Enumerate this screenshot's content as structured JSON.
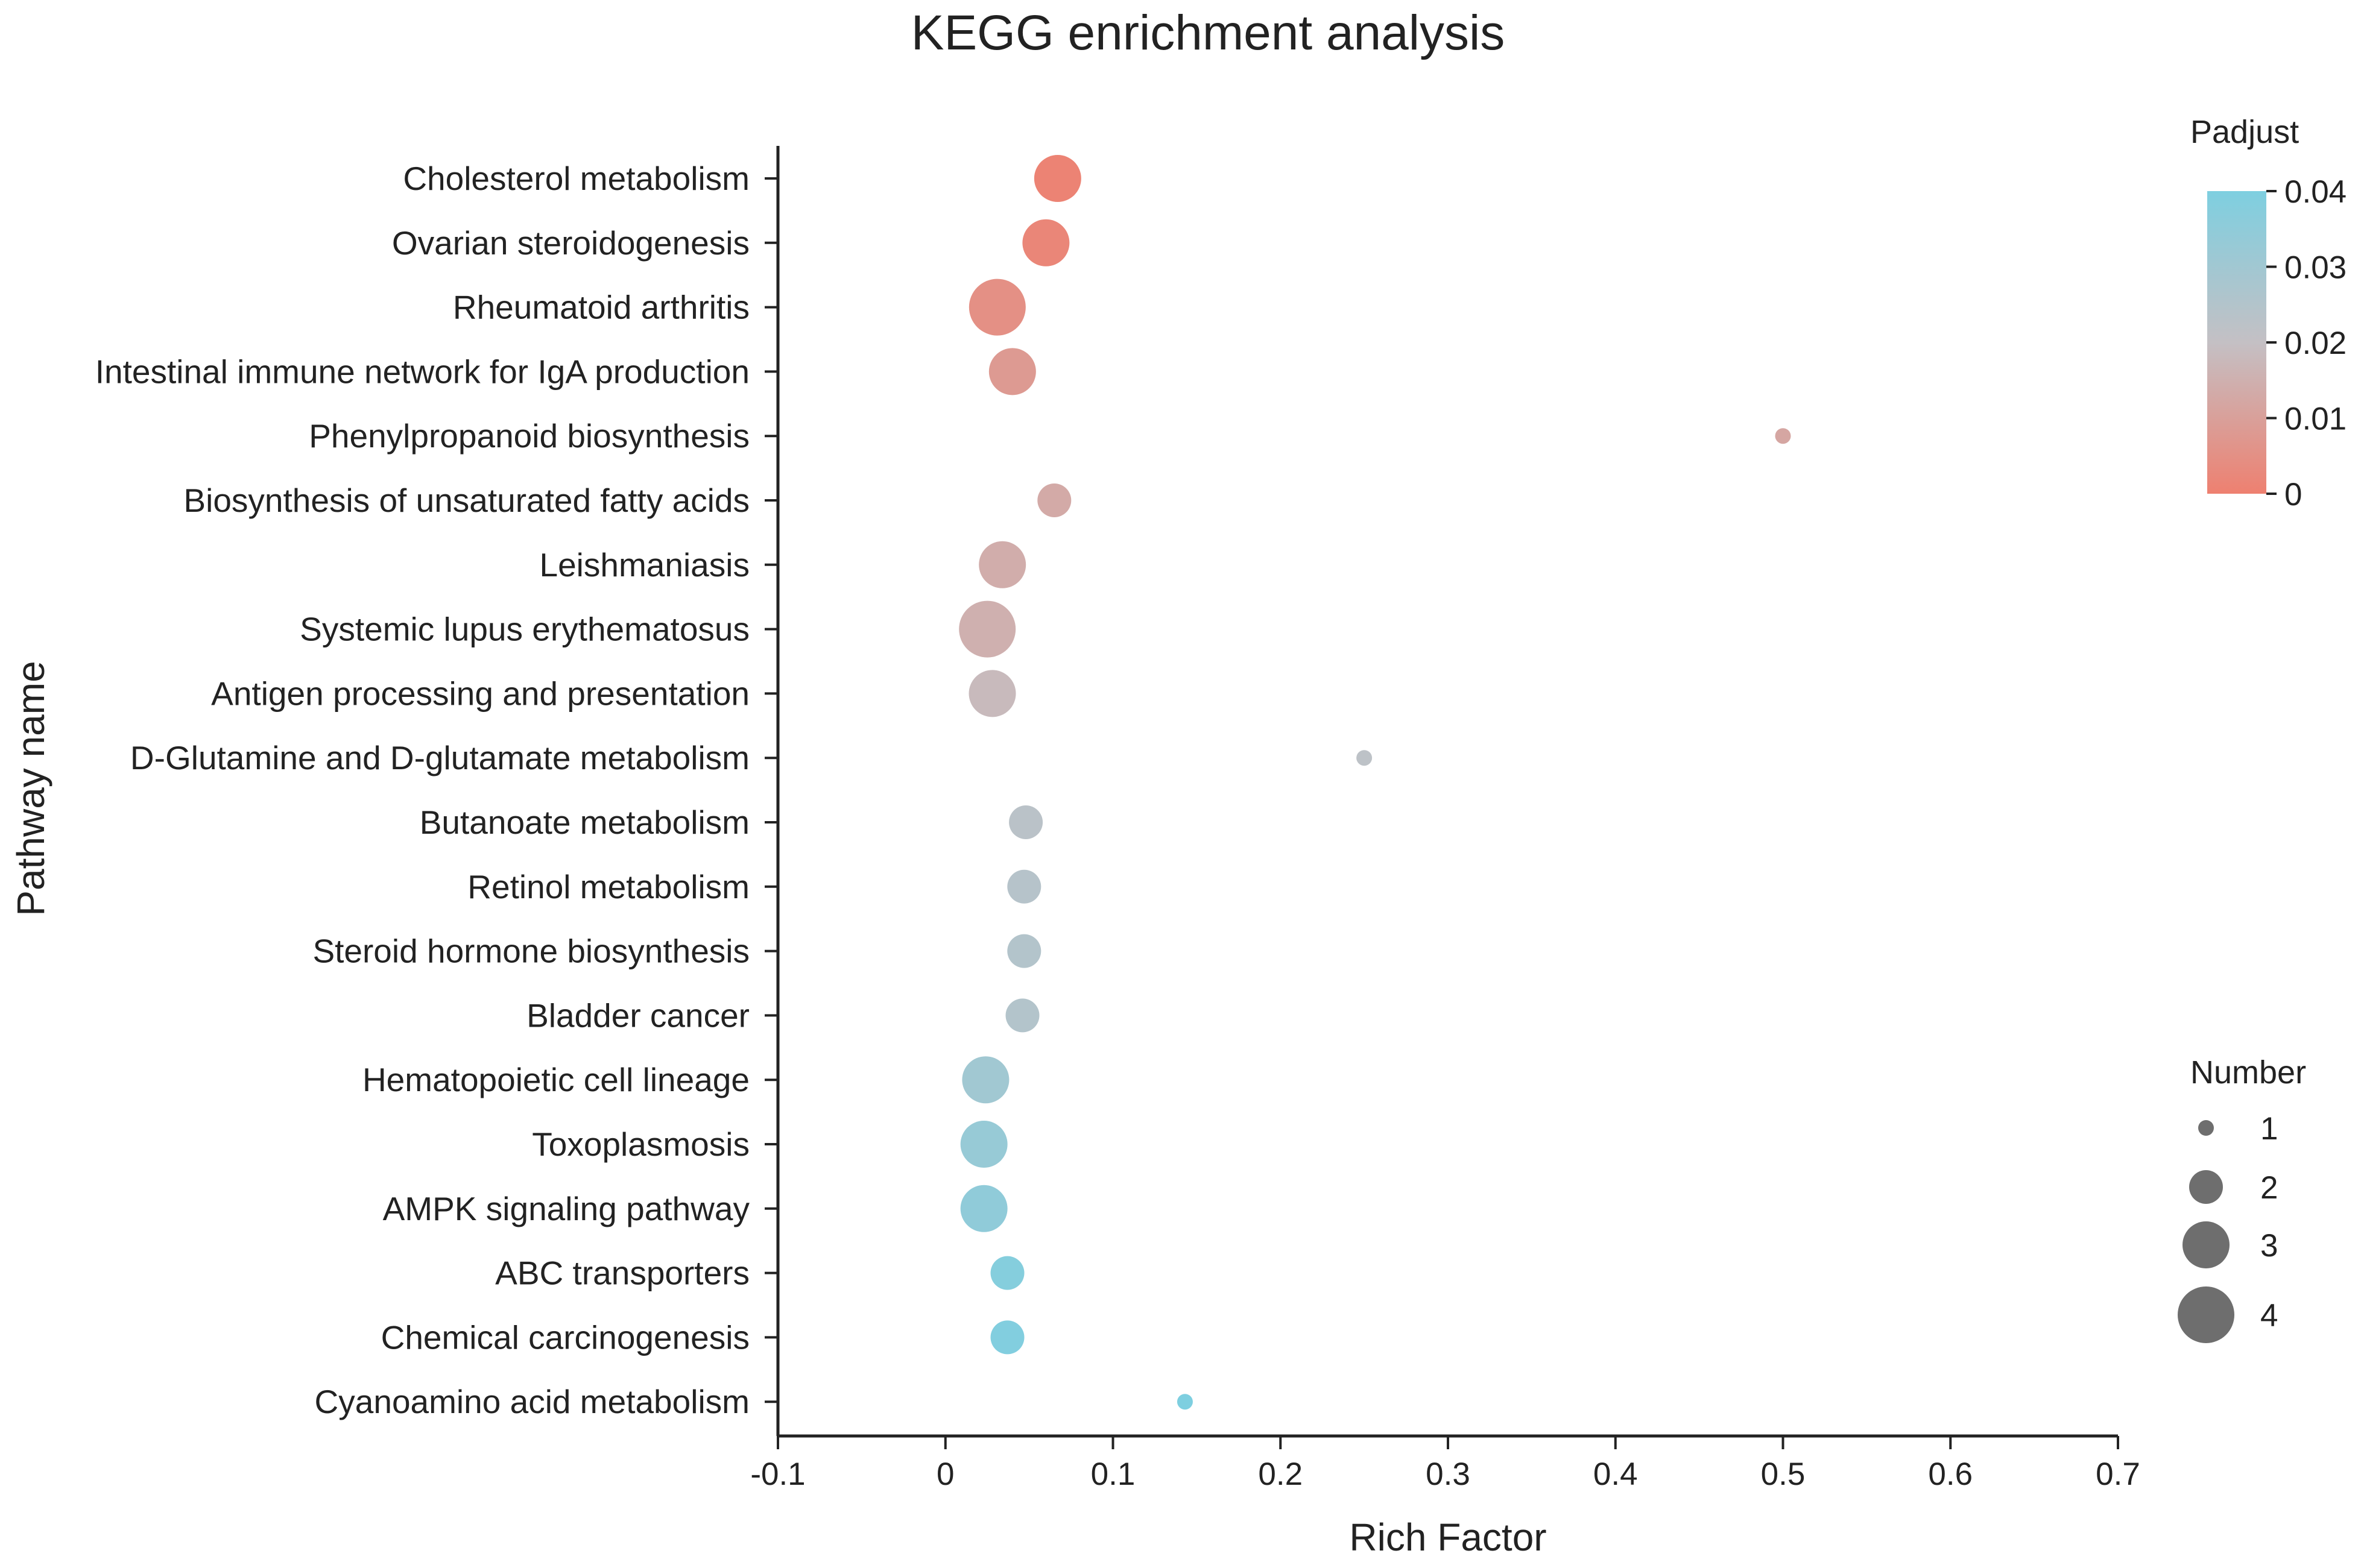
{
  "chart_data": {
    "type": "scatter",
    "title": "KEGG enrichment analysis",
    "xlabel": "Rich Factor",
    "ylabel": "Pathway name",
    "xlim": [
      -0.1,
      0.7
    ],
    "xticks": [
      -0.1,
      0,
      0.1,
      0.2,
      0.3,
      0.4,
      0.5,
      0.6,
      0.7
    ],
    "xtick_labels": [
      "-0.1",
      "0",
      "0.1",
      "0.2",
      "0.3",
      "0.4",
      "0.5",
      "0.6",
      "0.7"
    ],
    "grid": false,
    "points": [
      {
        "pathway": "Cholesterol metabolism",
        "rich_factor": 0.067,
        "number": 3,
        "padjust": 0.001
      },
      {
        "pathway": "Ovarian steroidogenesis",
        "rich_factor": 0.06,
        "number": 3,
        "padjust": 0.002
      },
      {
        "pathway": "Rheumatoid arthritis",
        "rich_factor": 0.031,
        "number": 4,
        "padjust": 0.005
      },
      {
        "pathway": "Intestinal immune network for IgA production",
        "rich_factor": 0.04,
        "number": 3,
        "padjust": 0.008
      },
      {
        "pathway": "Phenylpropanoid biosynthesis",
        "rich_factor": 0.5,
        "number": 1,
        "padjust": 0.012
      },
      {
        "pathway": "Biosynthesis of unsaturated fatty acids",
        "rich_factor": 0.065,
        "number": 2,
        "padjust": 0.013
      },
      {
        "pathway": "Leishmaniasis",
        "rich_factor": 0.034,
        "number": 3,
        "padjust": 0.014
      },
      {
        "pathway": "Systemic lupus erythematosus",
        "rich_factor": 0.025,
        "number": 4,
        "padjust": 0.015
      },
      {
        "pathway": "Antigen processing and presentation",
        "rich_factor": 0.028,
        "number": 3,
        "padjust": 0.018
      },
      {
        "pathway": "D-Glutamine and D-glutamate metabolism",
        "rich_factor": 0.25,
        "number": 1,
        "padjust": 0.022
      },
      {
        "pathway": "Butanoate metabolism",
        "rich_factor": 0.048,
        "number": 2,
        "padjust": 0.023
      },
      {
        "pathway": "Retinol metabolism",
        "rich_factor": 0.047,
        "number": 2,
        "padjust": 0.024
      },
      {
        "pathway": "Steroid hormone biosynthesis",
        "rich_factor": 0.047,
        "number": 2,
        "padjust": 0.025
      },
      {
        "pathway": "Bladder cancer",
        "rich_factor": 0.046,
        "number": 2,
        "padjust": 0.025
      },
      {
        "pathway": "Hematopoietic cell lineage",
        "rich_factor": 0.024,
        "number": 3,
        "padjust": 0.03
      },
      {
        "pathway": "Toxoplasmosis",
        "rich_factor": 0.023,
        "number": 3,
        "padjust": 0.033
      },
      {
        "pathway": "AMPK signaling pathway",
        "rich_factor": 0.023,
        "number": 3,
        "padjust": 0.035
      },
      {
        "pathway": "ABC transporters",
        "rich_factor": 0.037,
        "number": 2,
        "padjust": 0.038
      },
      {
        "pathway": "Chemical carcinogenesis",
        "rich_factor": 0.037,
        "number": 2,
        "padjust": 0.039
      },
      {
        "pathway": "Cyanoamino acid metabolism",
        "rich_factor": 0.143,
        "number": 1,
        "padjust": 0.04
      }
    ],
    "color_legend": {
      "title": "Padjust",
      "min": 0,
      "max": 0.04,
      "ticks": [
        0,
        0.01,
        0.02,
        0.03,
        0.04
      ],
      "tick_labels": [
        "0",
        "0.01",
        "0.02",
        "0.03",
        "0.04"
      ],
      "colors": {
        "low": "#ee8070",
        "mid": "#c4c0c4",
        "high": "#7ecfe0"
      },
      "placement": "top-right"
    },
    "size_legend": {
      "title": "Number",
      "values": [
        1,
        2,
        3,
        4
      ],
      "labels": [
        "1",
        "2",
        "3",
        "4"
      ],
      "marker_color": "#6e6e6e",
      "placement": "bottom-right"
    }
  }
}
